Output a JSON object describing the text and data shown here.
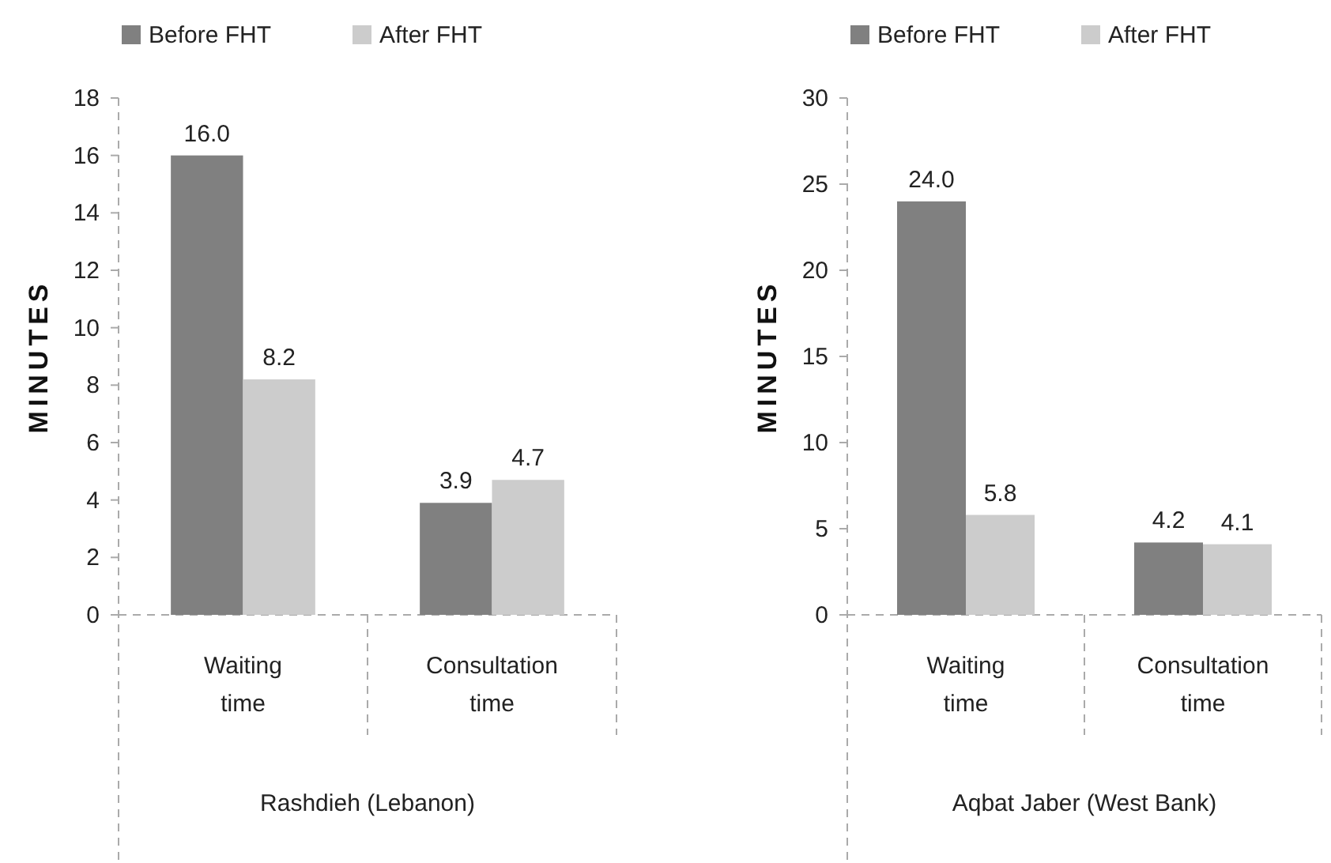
{
  "chart_data": [
    {
      "type": "bar",
      "ylabel": "MINUTES",
      "xlabel": "Rashdieh (Lebanon)",
      "categories": [
        "Waiting time",
        "Consultation time"
      ],
      "series": [
        {
          "name": "Before FHT",
          "color": "#808080",
          "values": [
            16.0,
            3.9
          ],
          "value_labels": [
            "16.0",
            "3.9"
          ]
        },
        {
          "name": "After FHT",
          "color": "#cccccc",
          "values": [
            8.2,
            4.7
          ],
          "value_labels": [
            "8.2",
            "4.7"
          ]
        }
      ],
      "ylim": [
        0,
        18
      ],
      "yticks": [
        0,
        2,
        4,
        6,
        8,
        10,
        12,
        14,
        16,
        18
      ],
      "legend": "top",
      "grid": false
    },
    {
      "type": "bar",
      "ylabel": "MINUTES",
      "xlabel": "Aqbat Jaber (West Bank)",
      "categories": [
        "Waiting time",
        "Consultation time"
      ],
      "series": [
        {
          "name": "Before FHT",
          "color": "#808080",
          "values": [
            24.0,
            4.2
          ],
          "value_labels": [
            "24.0",
            "4.2"
          ]
        },
        {
          "name": "After FHT",
          "color": "#cccccc",
          "values": [
            5.8,
            4.1
          ],
          "value_labels": [
            "5.8",
            "4.1"
          ]
        }
      ],
      "ylim": [
        0,
        30
      ],
      "yticks": [
        0,
        5,
        10,
        15,
        20,
        25,
        30
      ],
      "legend": "top",
      "grid": false
    }
  ]
}
